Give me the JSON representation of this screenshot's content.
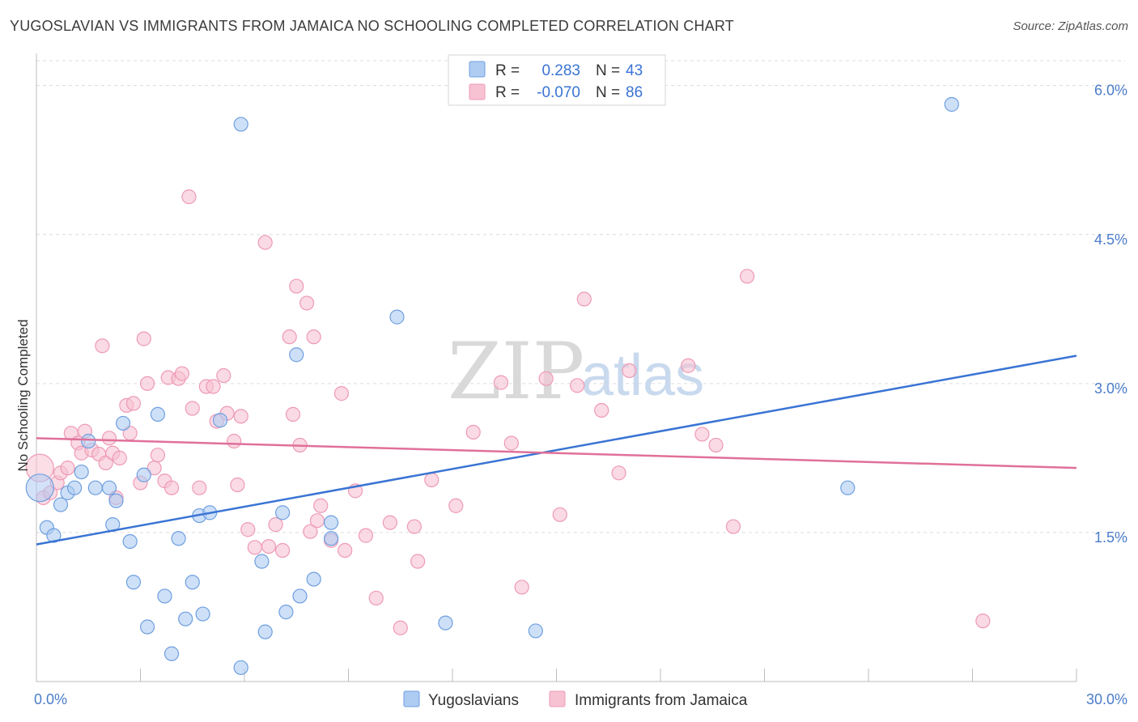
{
  "title": "YUGOSLAVIAN VS IMMIGRANTS FROM JAMAICA NO SCHOOLING COMPLETED CORRELATION CHART",
  "source": "Source: ZipAtlas.com",
  "watermark": {
    "zip": "ZIP",
    "atlas": "atlas"
  },
  "colors": {
    "blue_fill": "#aecbf2",
    "blue_stroke": "#6e9fe0",
    "blue_line": "#3a74d4",
    "pink_fill": "#f7c2d2",
    "pink_stroke": "#ee9ab5",
    "pink_line": "#e0709a",
    "value_text": "#3a74d4",
    "grid": "#dcdcdc"
  },
  "stats_legend": [
    {
      "r_label": "R =",
      "r_value": "0.283",
      "n_label": "N =",
      "n_value": "43"
    },
    {
      "r_label": "R =",
      "r_value": "-0.070",
      "n_label": "N =",
      "n_value": "86"
    }
  ],
  "chart_data": {
    "type": "scatter",
    "title": "YUGOSLAVIAN VS IMMIGRANTS FROM JAMAICA NO SCHOOLING COMPLETED CORRELATION CHART",
    "xlabel": "",
    "ylabel": "No Schooling Completed",
    "xlim": [
      0,
      30
    ],
    "ylim": [
      0,
      6.25
    ],
    "x_tick_labels": [
      "0.0%",
      "30.0%"
    ],
    "y_ticks": [
      1.5,
      3.0,
      4.5,
      6.0
    ],
    "y_tick_labels": [
      "1.5%",
      "3.0%",
      "4.5%",
      "6.0%"
    ],
    "grid": true,
    "legend_position": "bottom",
    "series": [
      {
        "name": "Yugoslavians",
        "color": "blue",
        "trend": {
          "x0": 0,
          "y0": 1.38,
          "x1": 30,
          "y1": 3.28
        },
        "points": [
          [
            0.1,
            1.95
          ],
          [
            0.3,
            1.55
          ],
          [
            0.5,
            1.47
          ],
          [
            0.7,
            1.78
          ],
          [
            0.9,
            1.9
          ],
          [
            1.1,
            1.95
          ],
          [
            1.3,
            2.11
          ],
          [
            1.5,
            2.42
          ],
          [
            1.7,
            1.95
          ],
          [
            2.1,
            1.95
          ],
          [
            2.2,
            1.58
          ],
          [
            2.3,
            1.82
          ],
          [
            2.5,
            2.6
          ],
          [
            2.7,
            1.41
          ],
          [
            2.8,
            1.0
          ],
          [
            3.1,
            2.08
          ],
          [
            3.2,
            0.55
          ],
          [
            3.5,
            2.69
          ],
          [
            3.7,
            0.86
          ],
          [
            3.9,
            0.28
          ],
          [
            4.1,
            1.44
          ],
          [
            4.3,
            0.63
          ],
          [
            4.5,
            1.0
          ],
          [
            4.7,
            1.67
          ],
          [
            4.8,
            0.68
          ],
          [
            5.0,
            1.7
          ],
          [
            5.3,
            2.63
          ],
          [
            5.9,
            5.61
          ],
          [
            5.9,
            0.14
          ],
          [
            6.5,
            1.21
          ],
          [
            6.6,
            0.5
          ],
          [
            7.1,
            1.7
          ],
          [
            7.2,
            0.7
          ],
          [
            7.5,
            3.29
          ],
          [
            7.6,
            0.86
          ],
          [
            8.0,
            1.03
          ],
          [
            8.5,
            1.44
          ],
          [
            8.5,
            1.6
          ],
          [
            10.4,
            3.67
          ],
          [
            11.8,
            0.59
          ],
          [
            14.4,
            0.51
          ],
          [
            23.4,
            1.95
          ],
          [
            26.4,
            5.81
          ]
        ]
      },
      {
        "name": "Immigrants from Jamaica",
        "color": "pink",
        "trend": {
          "x0": 0,
          "y0": 2.45,
          "x1": 30,
          "y1": 2.15
        },
        "points": [
          [
            0.1,
            2.15
          ],
          [
            0.2,
            1.85
          ],
          [
            0.4,
            1.9
          ],
          [
            0.6,
            2.0
          ],
          [
            0.7,
            2.1
          ],
          [
            0.9,
            2.15
          ],
          [
            1.0,
            2.5
          ],
          [
            1.2,
            2.4
          ],
          [
            1.3,
            2.3
          ],
          [
            1.4,
            2.52
          ],
          [
            1.6,
            2.33
          ],
          [
            1.8,
            2.29
          ],
          [
            1.9,
            3.38
          ],
          [
            2.0,
            2.2
          ],
          [
            2.1,
            2.45
          ],
          [
            2.2,
            2.3
          ],
          [
            2.3,
            1.85
          ],
          [
            2.4,
            2.25
          ],
          [
            2.6,
            2.78
          ],
          [
            2.7,
            2.5
          ],
          [
            2.8,
            2.8
          ],
          [
            3.0,
            2.0
          ],
          [
            3.1,
            3.45
          ],
          [
            3.2,
            3.0
          ],
          [
            3.4,
            2.15
          ],
          [
            3.5,
            2.28
          ],
          [
            3.7,
            2.02
          ],
          [
            3.8,
            3.06
          ],
          [
            3.9,
            1.95
          ],
          [
            4.1,
            3.05
          ],
          [
            4.2,
            3.1
          ],
          [
            4.4,
            4.88
          ],
          [
            4.5,
            2.75
          ],
          [
            4.7,
            1.95
          ],
          [
            4.9,
            2.97
          ],
          [
            5.1,
            2.97
          ],
          [
            5.2,
            2.62
          ],
          [
            5.4,
            3.08
          ],
          [
            5.5,
            2.7
          ],
          [
            5.7,
            2.42
          ],
          [
            5.8,
            1.98
          ],
          [
            5.9,
            2.67
          ],
          [
            6.1,
            1.53
          ],
          [
            6.3,
            1.35
          ],
          [
            6.6,
            4.42
          ],
          [
            6.7,
            1.36
          ],
          [
            6.9,
            1.58
          ],
          [
            7.1,
            1.32
          ],
          [
            7.3,
            3.47
          ],
          [
            7.4,
            2.69
          ],
          [
            7.5,
            3.98
          ],
          [
            7.6,
            2.38
          ],
          [
            7.8,
            3.81
          ],
          [
            7.9,
            1.51
          ],
          [
            8.0,
            3.47
          ],
          [
            8.1,
            1.62
          ],
          [
            8.2,
            1.77
          ],
          [
            8.5,
            1.42
          ],
          [
            8.8,
            2.9
          ],
          [
            8.9,
            1.32
          ],
          [
            9.2,
            1.92
          ],
          [
            9.5,
            1.47
          ],
          [
            9.8,
            0.84
          ],
          [
            10.2,
            1.6
          ],
          [
            10.5,
            0.54
          ],
          [
            10.9,
            1.56
          ],
          [
            11.0,
            1.21
          ],
          [
            11.4,
            2.03
          ],
          [
            12.1,
            1.77
          ],
          [
            12.6,
            2.51
          ],
          [
            13.4,
            3.01
          ],
          [
            13.7,
            2.4
          ],
          [
            14.0,
            0.95
          ],
          [
            14.7,
            3.05
          ],
          [
            15.1,
            1.68
          ],
          [
            15.6,
            2.98
          ],
          [
            15.8,
            3.85
          ],
          [
            16.3,
            2.73
          ],
          [
            16.8,
            2.1
          ],
          [
            17.1,
            3.13
          ],
          [
            18.8,
            3.18
          ],
          [
            19.2,
            2.49
          ],
          [
            19.6,
            2.38
          ],
          [
            20.1,
            1.56
          ],
          [
            20.5,
            4.08
          ],
          [
            27.3,
            0.61
          ]
        ]
      }
    ]
  }
}
